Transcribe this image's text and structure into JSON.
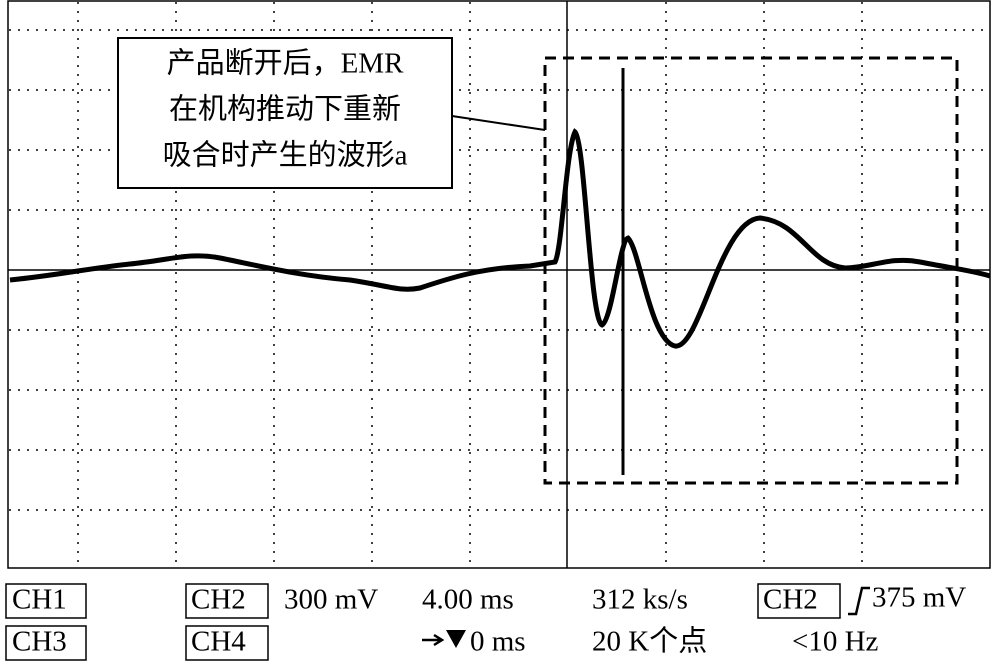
{
  "annotation": {
    "lines": [
      "产品断开后，EMR",
      "在机构推动下重新",
      "吸合时产生的波形a"
    ]
  },
  "status": {
    "row1": {
      "ch1": "CH1",
      "ch2": "CH2",
      "ch2_scale": "300 mV",
      "timebase": "4.00 ms",
      "sample_rate": "312 ks/s",
      "trigger_source": "CH2",
      "trigger_level": "375 mV"
    },
    "row2": {
      "ch3": "CH3",
      "ch4": "CH4",
      "trigger_position": "0 ms",
      "record_length": "20 K个点",
      "frequency": "<10 Hz"
    }
  }
}
